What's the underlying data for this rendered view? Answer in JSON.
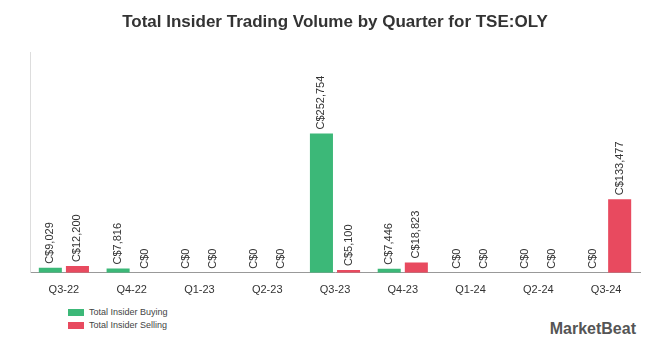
{
  "chart_data": {
    "type": "bar",
    "title": "Total Insider Trading Volume by Quarter for TSE:OLY",
    "categories": [
      "Q3-22",
      "Q4-22",
      "Q1-23",
      "Q2-23",
      "Q3-23",
      "Q4-23",
      "Q1-24",
      "Q2-24",
      "Q3-24"
    ],
    "series": [
      {
        "name": "Total Insider Buying",
        "color": "#3cb878",
        "values": [
          9029,
          7816,
          0,
          0,
          252754,
          7446,
          0,
          0,
          0
        ],
        "value_labels": [
          "C$9,029",
          "C$7,816",
          "C$0",
          "C$0",
          "C$252,754",
          "C$7,446",
          "C$0",
          "C$0",
          "C$0"
        ]
      },
      {
        "name": "Total Insider Selling",
        "color": "#e84a5f",
        "values": [
          12200,
          0,
          0,
          0,
          5100,
          18823,
          0,
          0,
          133477
        ],
        "value_labels": [
          "C$12,200",
          "C$0",
          "C$0",
          "C$0",
          "C$5,100",
          "C$18,823",
          "C$0",
          "C$0",
          "C$133,477"
        ]
      }
    ],
    "ylim": [
      0,
      400000
    ],
    "grid": false,
    "legend": "lower left",
    "data_labels": true,
    "tick_labels": "x",
    "annotations": [
      "MarketBeat"
    ]
  }
}
